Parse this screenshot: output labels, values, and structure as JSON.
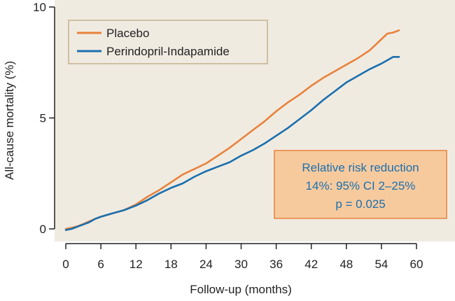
{
  "chart_data": {
    "type": "line",
    "xlabel": "Follow-up (months)",
    "ylabel": "All-cause mortality (%)",
    "xlim": [
      0,
      60
    ],
    "ylim": [
      0,
      10
    ],
    "x_ticks": [
      0,
      6,
      12,
      18,
      24,
      30,
      36,
      42,
      48,
      54,
      60
    ],
    "y_ticks": [
      0,
      5,
      10
    ],
    "grid": false,
    "legend_position": "top-left",
    "colors": {
      "plot_bg": "#f0ebe1",
      "annotation_bg": "#f7ca9e",
      "annotation_border": "#e8823c",
      "annotation_text": "#1a6fae"
    },
    "series": [
      {
        "name": "Placebo",
        "color": "#e8823c",
        "x": [
          0,
          1,
          2,
          3,
          4,
          5,
          6,
          8,
          10,
          12,
          14,
          16,
          18,
          20,
          22,
          24,
          26,
          28,
          30,
          32,
          34,
          36,
          38,
          40,
          42,
          44,
          46,
          48,
          50,
          52,
          54,
          55,
          56,
          57
        ],
        "y": [
          0,
          0.05,
          0.12,
          0.22,
          0.34,
          0.45,
          0.55,
          0.7,
          0.85,
          1.1,
          1.45,
          1.75,
          2.1,
          2.45,
          2.7,
          2.95,
          3.3,
          3.65,
          4.05,
          4.45,
          4.85,
          5.3,
          5.7,
          6.05,
          6.45,
          6.8,
          7.1,
          7.4,
          7.7,
          8.05,
          8.55,
          8.8,
          8.85,
          8.95
        ]
      },
      {
        "name": "Perindopril-Indapamide",
        "color": "#1a6fae",
        "x": [
          0,
          1,
          2,
          3,
          4,
          5,
          6,
          8,
          10,
          12,
          14,
          16,
          18,
          20,
          22,
          24,
          26,
          28,
          30,
          32,
          34,
          36,
          38,
          40,
          42,
          44,
          46,
          48,
          50,
          52,
          54,
          55,
          56,
          57
        ],
        "y": [
          -0.05,
          0,
          0.1,
          0.2,
          0.3,
          0.45,
          0.55,
          0.7,
          0.85,
          1.05,
          1.3,
          1.6,
          1.85,
          2.05,
          2.35,
          2.6,
          2.8,
          3.0,
          3.3,
          3.55,
          3.85,
          4.2,
          4.55,
          4.95,
          5.35,
          5.8,
          6.2,
          6.6,
          6.9,
          7.2,
          7.45,
          7.6,
          7.75,
          7.75
        ]
      }
    ],
    "annotation": {
      "line1": "Relative risk reduction",
      "line2": "14%: 95% CI 2–25%",
      "line3": "p = 0.025"
    },
    "tick_labels_x": [
      "0",
      "6",
      "12",
      "18",
      "24",
      "30",
      "36",
      "42",
      "48",
      "54",
      "60"
    ],
    "tick_labels_y": [
      "0",
      "5",
      "10"
    ]
  }
}
